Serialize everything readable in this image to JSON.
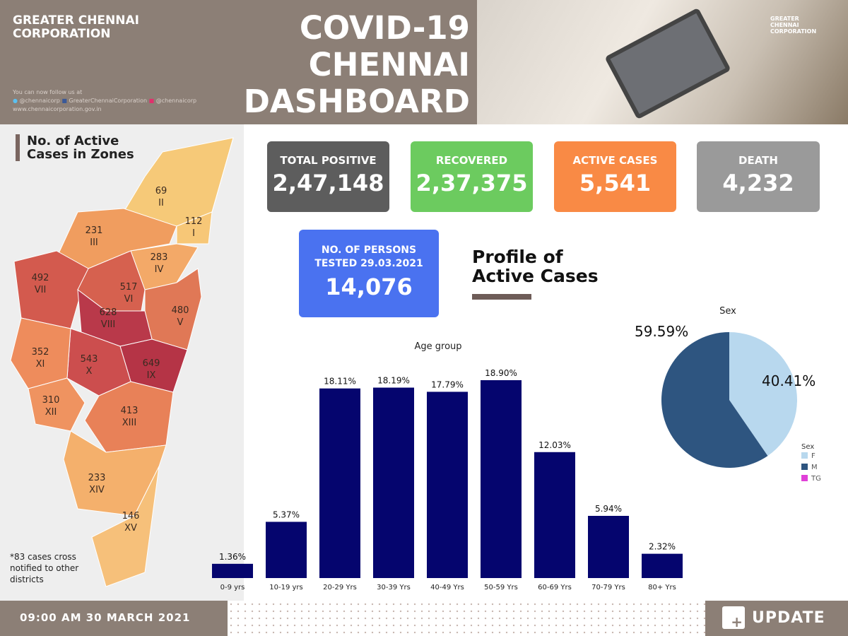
{
  "header": {
    "org": "GREATER CHENNAI CORPORATION",
    "title_lines": [
      "COVID-19",
      "CHENNAI",
      "DASHBOARD"
    ],
    "follow": "You can now follow us at",
    "social": [
      "@chennaicorp",
      "GreaterChennaiCorporation",
      "@chennaicorp"
    ],
    "website": "www.chennaicorporation.gov.in",
    "photo_logo": "GREATER CHENNAI CORPORATION"
  },
  "map": {
    "title": "No. of Active Cases in Zones",
    "note": "*83 cases cross notified to other districts",
    "zones": [
      {
        "id": "I",
        "cases": 112
      },
      {
        "id": "II",
        "cases": 69
      },
      {
        "id": "III",
        "cases": 231
      },
      {
        "id": "IV",
        "cases": 283
      },
      {
        "id": "V",
        "cases": 480
      },
      {
        "id": "VI",
        "cases": 517
      },
      {
        "id": "VII",
        "cases": 492
      },
      {
        "id": "VIII",
        "cases": 628
      },
      {
        "id": "IX",
        "cases": 649
      },
      {
        "id": "X",
        "cases": 543
      },
      {
        "id": "XI",
        "cases": 352
      },
      {
        "id": "XII",
        "cases": 310
      },
      {
        "id": "XIII",
        "cases": 413
      },
      {
        "id": "XIV",
        "cases": 233
      },
      {
        "id": "XV",
        "cases": 146
      }
    ]
  },
  "stats": {
    "total_positive": {
      "label": "TOTAL POSITIVE",
      "value": "2,47,148",
      "color": "#5d5d5d"
    },
    "recovered": {
      "label": "RECOVERED",
      "value": "2,37,375",
      "color": "#6ccb5f"
    },
    "active": {
      "label": "ACTIVE CASES",
      "value": "5,541",
      "color": "#f98a45"
    },
    "death": {
      "label": "DEATH",
      "value": "4,232",
      "color": "#9a9a9a"
    },
    "tested": {
      "label1": "NO. OF PERSONS",
      "label2": "TESTED 29.03.2021",
      "value": "14,076",
      "color": "#4a72f0"
    }
  },
  "profile_title": "Profile of Active Cases",
  "chart_data": [
    {
      "type": "bar",
      "title": "Age group",
      "categories": [
        "0-9 yrs",
        "10-19 yrs",
        "20-29 Yrs",
        "30-39 Yrs",
        "40-49 Yrs",
        "50-59 Yrs",
        "60-69 Yrs",
        "70-79 Yrs",
        "80+ Yrs"
      ],
      "values": [
        1.36,
        5.37,
        18.11,
        18.19,
        17.79,
        18.9,
        12.03,
        5.94,
        2.32
      ],
      "labels": [
        "1.36%",
        "5.37%",
        "18.11%",
        "18.19%",
        "17.79%",
        "18.90%",
        "12.03%",
        "5.94%",
        "2.32%"
      ],
      "ylim": [
        0,
        20
      ],
      "color": "#05056e"
    },
    {
      "type": "pie",
      "title": "Sex",
      "legend_title": "Sex",
      "legend": "right",
      "slices": [
        {
          "name": "F",
          "value": 40.41,
          "label": "40.41%",
          "color": "#b8d8ee"
        },
        {
          "name": "M",
          "value": 59.59,
          "label": "59.59%",
          "color": "#2e5580"
        },
        {
          "name": "TG",
          "value": 0,
          "label": "",
          "color": "#e040d8"
        }
      ]
    }
  ],
  "footer": {
    "timestamp": "09:00 AM 30 MARCH 2021",
    "update": "UPDATE"
  }
}
